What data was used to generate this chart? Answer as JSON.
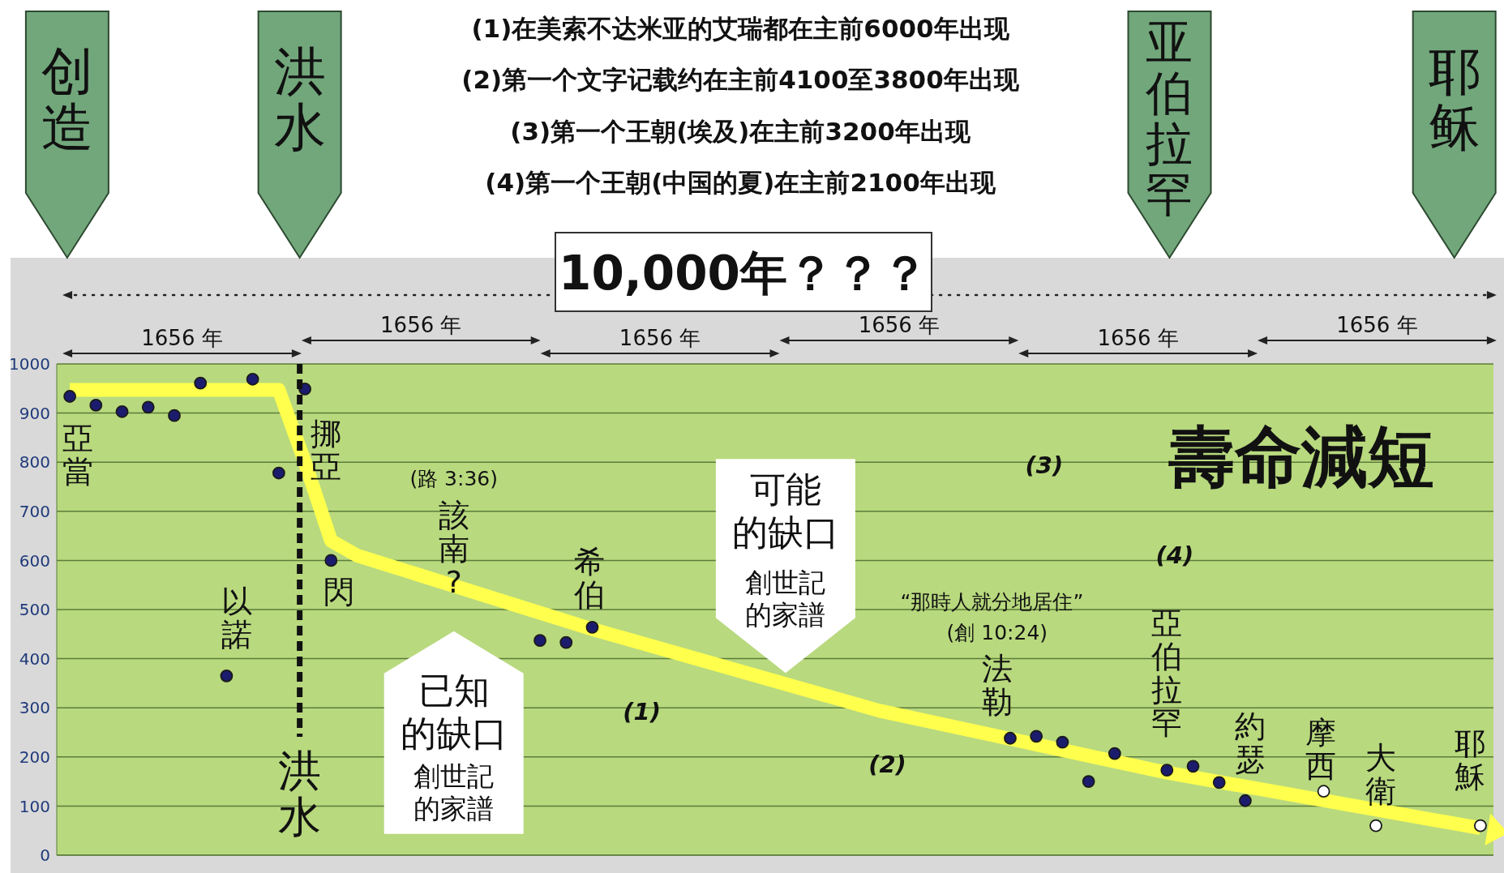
{
  "chart_data": {
    "type": "scatter",
    "title": "壽命減短",
    "categories": [
      null,
      null,
      null,
      null,
      null,
      null,
      null,
      null,
      null,
      null,
      null,
      null,
      null,
      null,
      null,
      null,
      null,
      null,
      null,
      null,
      null,
      null,
      null,
      null,
      null,
      null,
      null,
      null,
      null,
      null,
      null,
      null,
      null,
      null,
      null,
      null,
      null,
      null,
      null,
      null,
      null,
      null,
      null,
      null,
      null,
      null,
      null,
      null,
      null,
      null,
      null,
      null,
      null,
      null,
      null
    ],
    "ylim": [
      0,
      1000
    ],
    "yticks": [
      0,
      100,
      200,
      300,
      400,
      500,
      600,
      700,
      800,
      900,
      1000
    ],
    "tick_labels": "y",
    "grid": "y",
    "series": [
      {
        "type": "line",
        "color": "#ffff4d",
        "marker": "none",
        "values": [
          947,
          null,
          null,
          null,
          null,
          null,
          null,
          null,
          947,
          800,
          640,
          610,
          null,
          null,
          null,
          null,
          null,
          null,
          null,
          null,
          460,
          null,
          null,
          null,
          null,
          null,
          null,
          null,
          null,
          null,
          null,
          294,
          null,
          null,
          null,
          null,
          null,
          null,
          null,
          null,
          null,
          null,
          168,
          null,
          null,
          null,
          null,
          null,
          null,
          null,
          null,
          null,
          null,
          null,
          55
        ]
      },
      {
        "color": "#1c1c6e",
        "marker": "circle",
        "values": [
          934,
          916,
          903,
          912,
          895,
          961,
          365,
          969,
          778,
          949,
          600,
          null,
          null,
          null,
          null,
          null,
          null,
          null,
          437,
          433,
          464,
          null,
          null,
          null,
          null,
          null,
          null,
          null,
          null,
          null,
          null,
          null,
          null,
          null,
          null,
          null,
          238,
          242,
          230,
          150,
          207,
          null,
          173,
          181,
          148,
          111,
          null,
          null,
          null,
          null,
          null,
          null,
          null,
          null,
          null
        ]
      },
      {
        "color": "#ffffff",
        "marker": "circle",
        "values": [
          null,
          null,
          null,
          null,
          null,
          null,
          null,
          null,
          null,
          null,
          null,
          null,
          null,
          null,
          null,
          null,
          null,
          null,
          null,
          null,
          null,
          null,
          null,
          null,
          null,
          null,
          null,
          null,
          null,
          null,
          null,
          null,
          null,
          null,
          null,
          null,
          null,
          null,
          null,
          null,
          null,
          null,
          null,
          null,
          null,
          null,
          null,
          null,
          130,
          null,
          60,
          null,
          null,
          null,
          60
        ]
      }
    ],
    "ref_lines": [
      {
        "axis": "x",
        "label": "洪水",
        "color": "#111111",
        "line_style": "dashed"
      }
    ],
    "annotations": [
      "(1)在美索不达米亚的艾瑞都在主前6000年出现",
      "(2)第一个文字记载约在主前4100至3800年出现",
      "(3)第一个王朝(埃及)在主前3200年出现",
      "(4)第一个王朝(中国的夏)在主前2100年出现",
      "10,000年？？？",
      "1656 年",
      "1656 年",
      "1656 年",
      "1656 年",
      "1656 年",
      "1656 年",
      "创造",
      "洪水",
      "亚伯拉罕",
      "耶稣",
      "亞當",
      "以諾",
      "挪亞",
      "閃",
      "(路 3:36)",
      "該南?",
      "希伯",
      "“那時人就分地居住”",
      "(創 10:24)",
      "法勒",
      "亞伯拉罕",
      "約瑟",
      "摩西",
      "大衛",
      "耶穌",
      "已知的缺口",
      "創世記的家譜",
      "可能的缺口",
      "創世記的家譜",
      "(1)",
      "(2)",
      "(3)",
      "(4)"
    ]
  }
}
